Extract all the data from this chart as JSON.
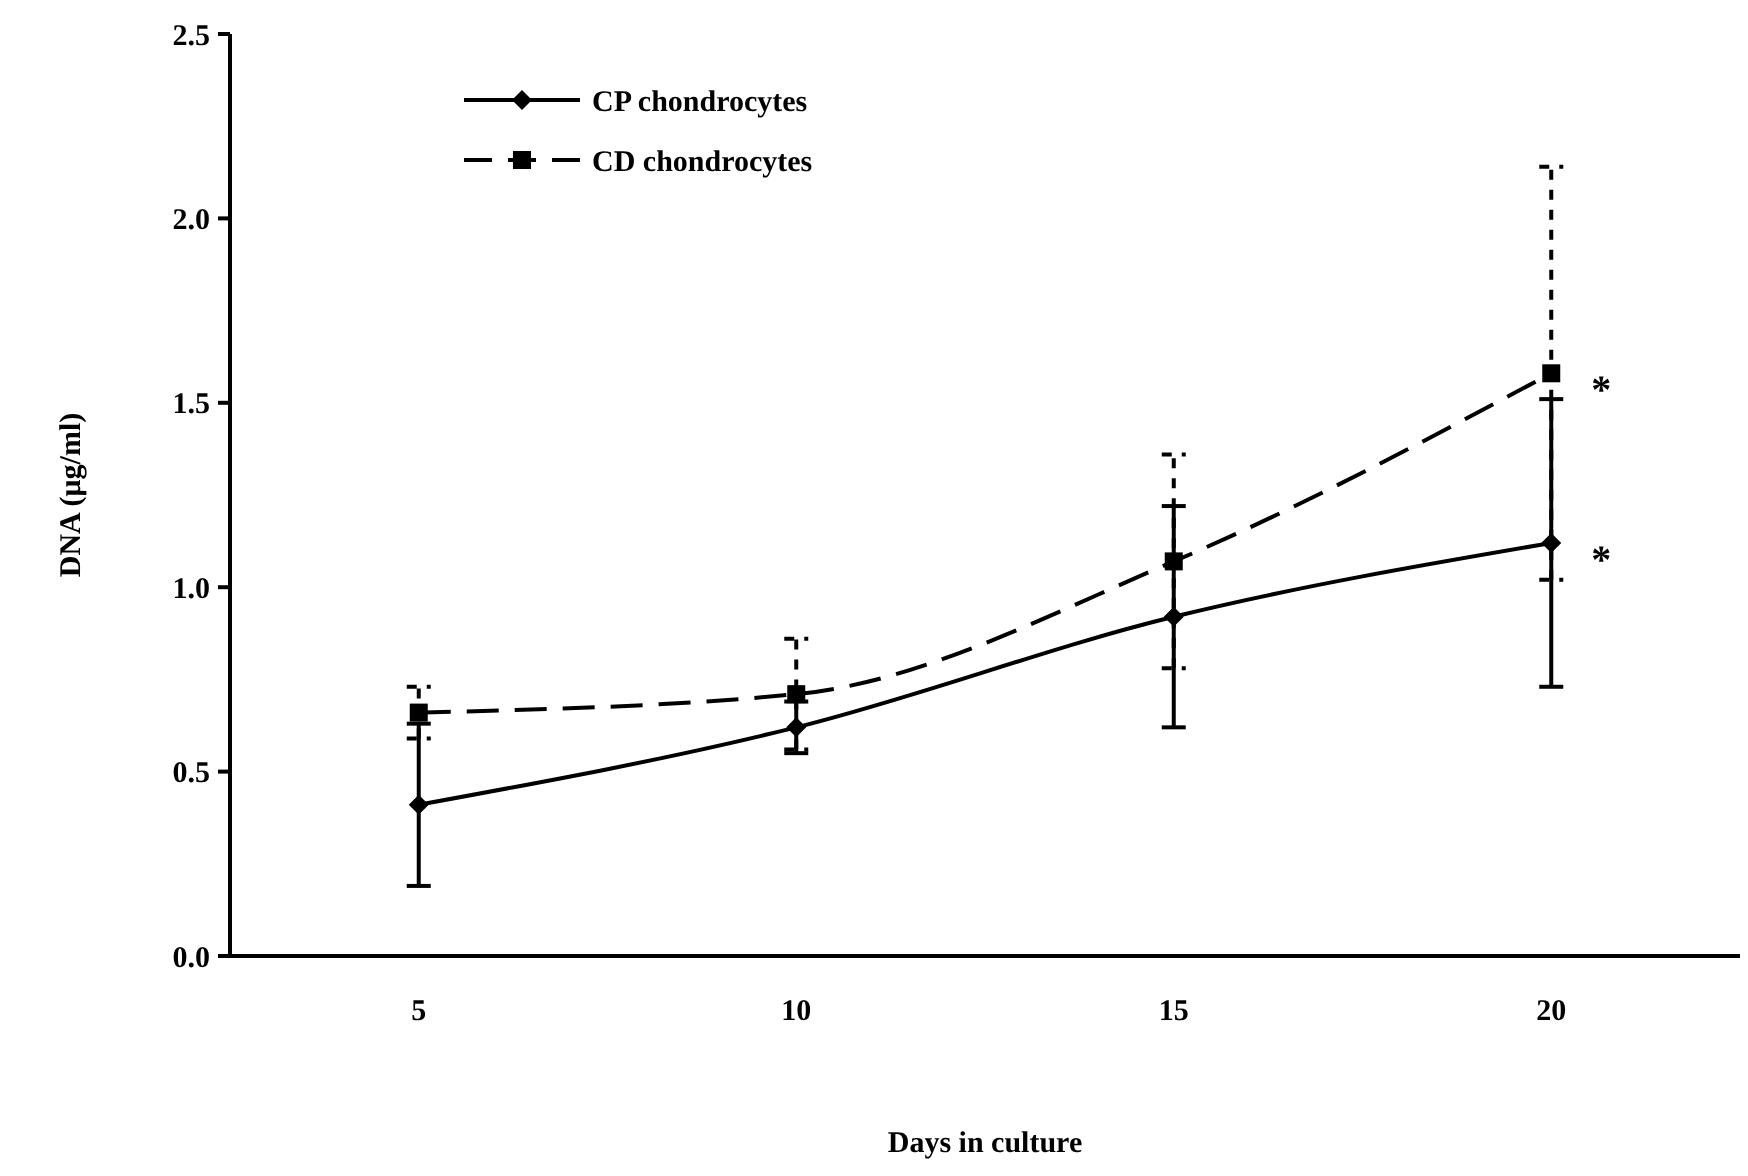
{
  "chart_data": {
    "type": "line",
    "xlabel": "Days in culture",
    "ylabel": "DNA (μg/ml)",
    "categories": [
      "5",
      "10",
      "15",
      "20"
    ],
    "series": [
      {
        "name": "CP chondrocytes",
        "color": "#000000",
        "values": [
          0.41,
          0.62,
          0.92,
          1.12
        ],
        "errors": [
          0.22,
          0.07,
          0.3,
          0.39
        ],
        "marker": "diamond",
        "line_style": "solid"
      },
      {
        "name": "CD chondrocytes",
        "color": "#000000",
        "values": [
          0.66,
          0.71,
          1.07,
          1.58
        ],
        "errors": [
          0.07,
          0.15,
          0.29,
          0.56
        ],
        "marker": "square",
        "line_style": "dashed"
      }
    ],
    "ylim": [
      0,
      2.5
    ],
    "yticks": [
      {
        "value": 0,
        "label": "0.0"
      },
      {
        "value": 0.5,
        "label": "0.5"
      },
      {
        "value": 1,
        "label": "1.0"
      },
      {
        "value": 1.5,
        "label": "1.5"
      },
      {
        "value": 2,
        "label": "2.0"
      },
      {
        "value": 2.5,
        "label": "2.5"
      }
    ],
    "grid": false,
    "legend": "top left",
    "annotations": [
      {
        "text": "*",
        "x": "20",
        "y": 1.58
      },
      {
        "text": "*",
        "x": "20",
        "y": 1.12
      }
    ]
  }
}
